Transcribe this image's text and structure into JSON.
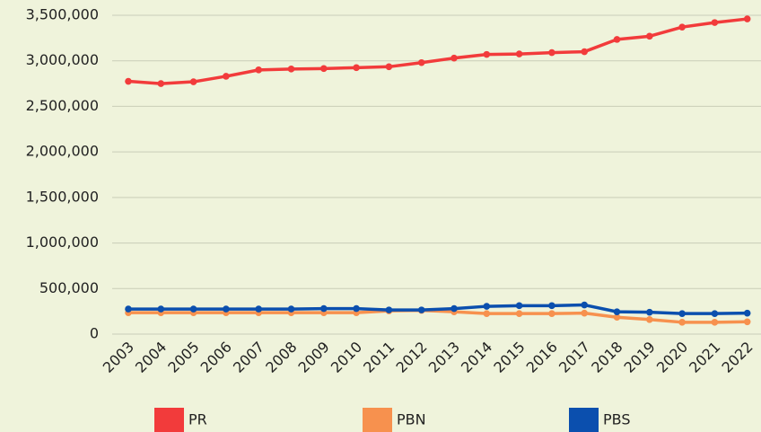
{
  "chart_data": {
    "type": "line",
    "categories": [
      "2003",
      "2004",
      "2005",
      "2006",
      "2007",
      "2008",
      "2009",
      "2010",
      "2011",
      "2012",
      "2013",
      "2014",
      "2015",
      "2016",
      "2017",
      "2018",
      "2019",
      "2020",
      "2021",
      "2022"
    ],
    "series": [
      {
        "name": "PR",
        "color": "#f23b3b",
        "values": [
          2775000,
          2750000,
          2770000,
          2830000,
          2900000,
          2910000,
          2915000,
          2925000,
          2935000,
          2980000,
          3030000,
          3070000,
          3075000,
          3090000,
          3100000,
          3235000,
          3270000,
          3370000,
          3420000,
          3460000
        ]
      },
      {
        "name": "PBN",
        "color": "#f7914e",
        "values": [
          235000,
          235000,
          235000,
          235000,
          235000,
          235000,
          235000,
          235000,
          255000,
          260000,
          245000,
          225000,
          225000,
          225000,
          230000,
          185000,
          160000,
          130000,
          130000,
          135000
        ]
      },
      {
        "name": "PBS",
        "color": "#0b4fae",
        "values": [
          275000,
          275000,
          275000,
          275000,
          275000,
          275000,
          280000,
          280000,
          265000,
          265000,
          280000,
          305000,
          312000,
          312000,
          320000,
          245000,
          240000,
          225000,
          225000,
          230000
        ]
      }
    ],
    "ylim": [
      0,
      3500000
    ],
    "yticks": [
      0,
      {
        "value": 500000,
        "label": "500,000"
      },
      {
        "value": 1000000,
        "label": "1,000,000"
      },
      {
        "value": 1500000,
        "label": "1,500,000"
      },
      {
        "value": 2000000,
        "label": "2,000,000"
      },
      {
        "value": 2500000,
        "label": "2,500,000"
      },
      {
        "value": 3000000,
        "label": "3,000,000"
      },
      {
        "value": 3500000,
        "label": "3,500,000"
      }
    ],
    "grid": true,
    "legend": "bottom"
  }
}
